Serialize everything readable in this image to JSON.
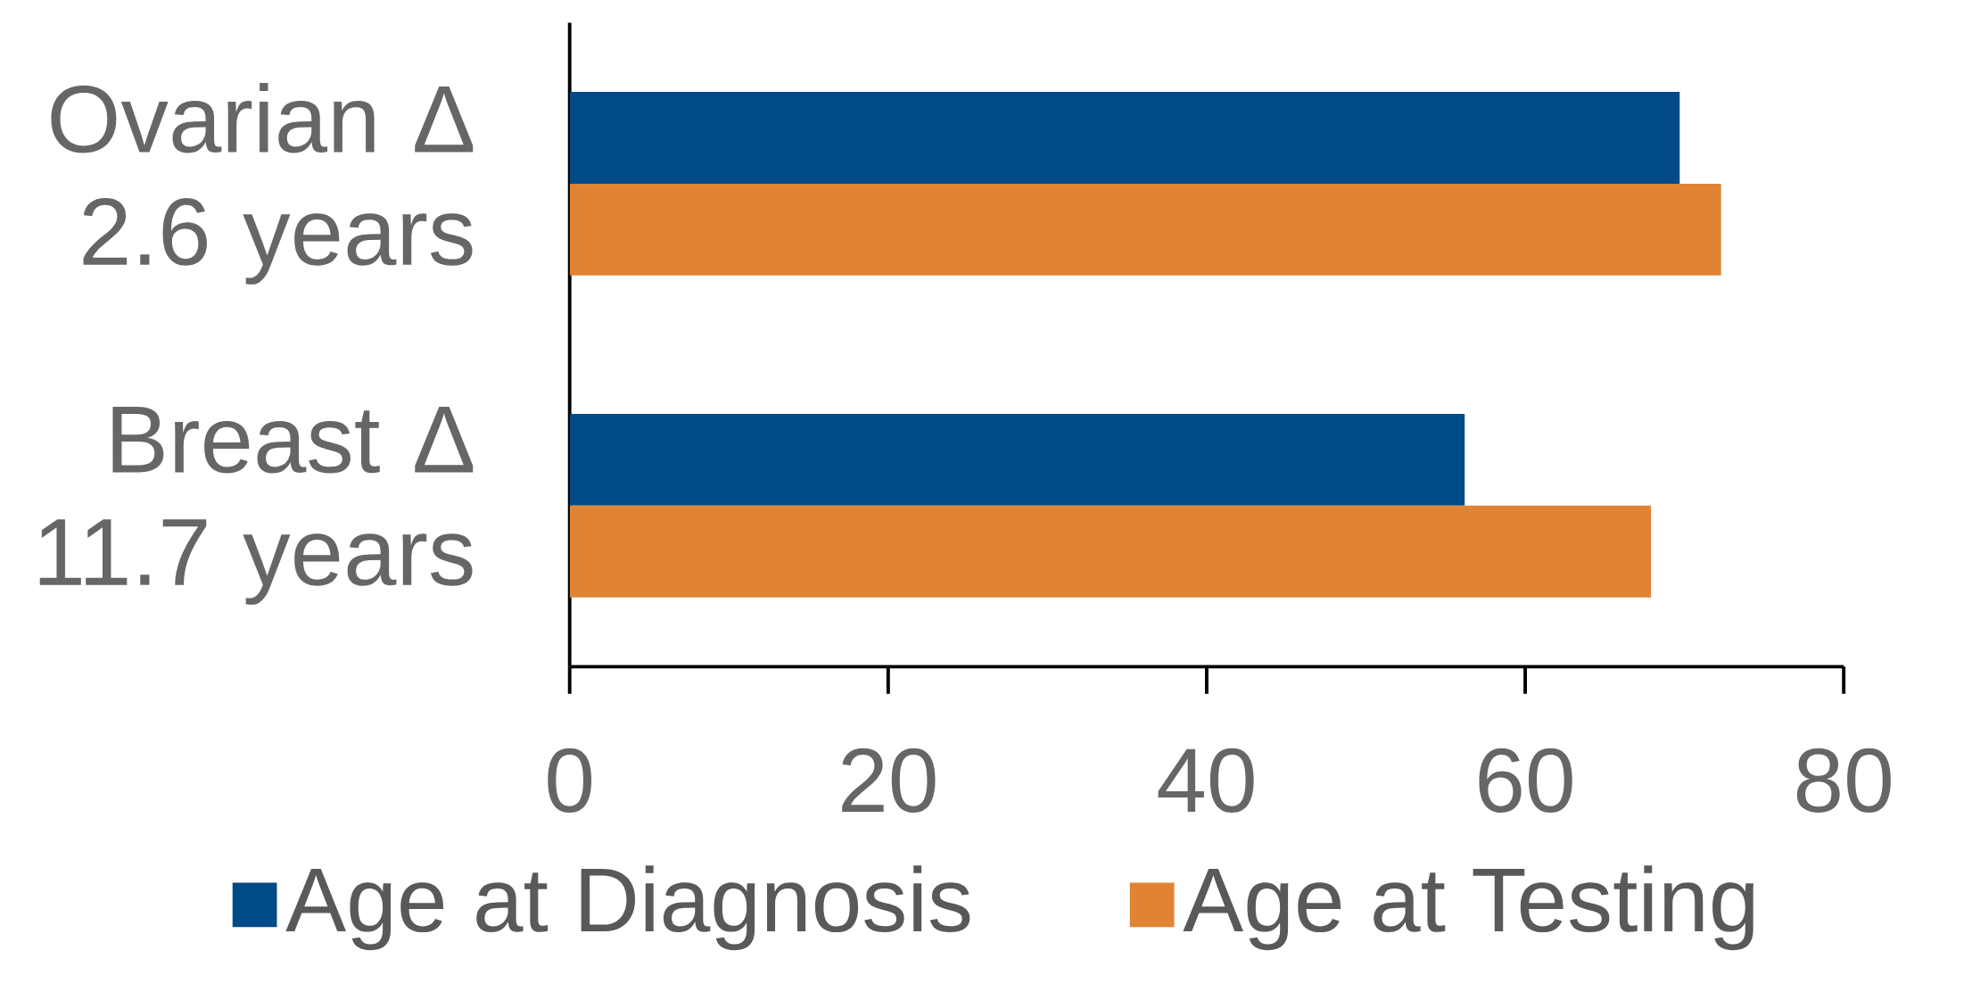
{
  "chart_data": {
    "type": "bar",
    "orientation": "horizontal",
    "categories": [
      "Ovarian Δ 2.6 years",
      "Breast Δ 11.7 years"
    ],
    "series": [
      {
        "name": "Age at Diagnosis",
        "color": "#004a87",
        "values": [
          69.7,
          56.2
        ]
      },
      {
        "name": "Age at Testing",
        "color": "#e08433",
        "values": [
          72.3,
          67.9
        ]
      }
    ],
    "xlim": [
      0,
      80
    ],
    "xticks": [
      0,
      20,
      40,
      60,
      80
    ],
    "grid": false,
    "legend": "bottom"
  }
}
